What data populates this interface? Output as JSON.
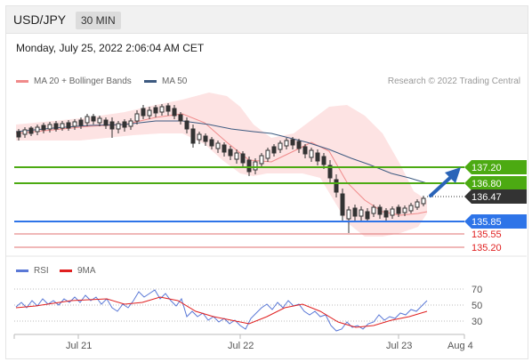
{
  "header": {
    "symbol": "USD/JPY",
    "interval": "30 MIN",
    "datetime": "Monday, July 25, 2022 2:06:04 AM CET",
    "research": "Research © 2022 Trading Central"
  },
  "legend_main": [
    {
      "label": "MA 20 + Bollinger Bands",
      "color": "#f08a8a"
    },
    {
      "label": "MA 50",
      "color": "#3d5a80"
    }
  ],
  "legend_rsi": [
    {
      "label": "RSI",
      "color": "#5a78d6"
    },
    {
      "label": "9MA",
      "color": "#e02020"
    }
  ],
  "chart_data": {
    "type": "candlestick",
    "x_ticks": [
      "Jul 21",
      "Jul 22",
      "Jul 23",
      "Aug 4"
    ],
    "price_levels": [
      {
        "value": "137.20",
        "kind": "resistance",
        "color": "#4caa12"
      },
      {
        "value": "136.80",
        "kind": "resistance",
        "color": "#4caa12"
      },
      {
        "value": "136.47",
        "kind": "current",
        "color": "#333333"
      },
      {
        "value": "135.85",
        "kind": "support",
        "color": "#2e74e8"
      },
      {
        "value": "135.55",
        "kind": "support",
        "color": "#e07070"
      },
      {
        "value": "135.20",
        "kind": "support",
        "color": "#e07070"
      }
    ],
    "rsi_levels": [
      "70",
      "50",
      "30"
    ]
  }
}
